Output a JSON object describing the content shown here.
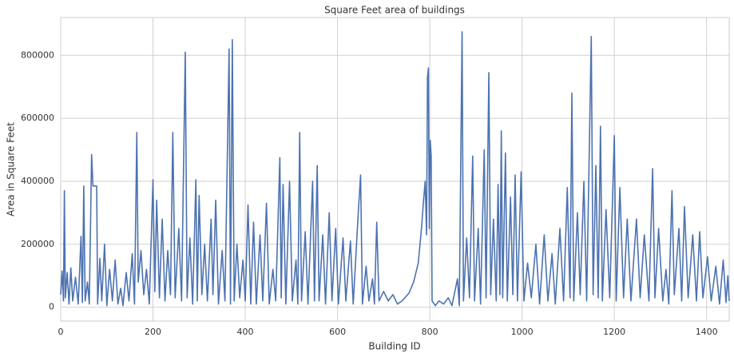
{
  "chart_data": {
    "type": "line",
    "title": "Square Feet area of buildings",
    "xlabel": "Building ID",
    "ylabel": "Area in Square Feet",
    "color": "#4c72b0",
    "grid": true,
    "xlim": [
      0,
      1449
    ],
    "ylim": [
      -44000,
      920000
    ],
    "xticks": [
      0,
      200,
      400,
      600,
      800,
      1000,
      1200,
      1400
    ],
    "yticks": [
      0,
      200000,
      400000,
      600000,
      800000
    ],
    "x": [
      0,
      3,
      6,
      8,
      10,
      14,
      18,
      22,
      26,
      32,
      38,
      44,
      47,
      50,
      53,
      58,
      62,
      67,
      70,
      78,
      80,
      85,
      89,
      95,
      100,
      106,
      112,
      118,
      124,
      130,
      135,
      142,
      148,
      155,
      160,
      165,
      168,
      174,
      180,
      186,
      192,
      200,
      204,
      208,
      214,
      220,
      226,
      232,
      238,
      243,
      248,
      256,
      262,
      270,
      274,
      280,
      286,
      293,
      296,
      300,
      306,
      312,
      318,
      326,
      330,
      336,
      342,
      350,
      356,
      365,
      368,
      372,
      376,
      382,
      388,
      395,
      400,
      406,
      412,
      418,
      424,
      432,
      438,
      446,
      452,
      460,
      466,
      475,
      478,
      482,
      488,
      496,
      502,
      510,
      514,
      518,
      522,
      530,
      536,
      546,
      550,
      556,
      560,
      568,
      574,
      582,
      588,
      596,
      602,
      612,
      618,
      628,
      634,
      645,
      650,
      654,
      662,
      668,
      676,
      680,
      685,
      690,
      700,
      710,
      720,
      730,
      740,
      755,
      765,
      775,
      782,
      786,
      790,
      793,
      795,
      797,
      799,
      801,
      803,
      805,
      812,
      820,
      830,
      840,
      848,
      860,
      864,
      870,
      873,
      880,
      886,
      893,
      897,
      905,
      910,
      918,
      922,
      928,
      932,
      938,
      944,
      948,
      952,
      955,
      958,
      964,
      968,
      975,
      980,
      985,
      990,
      998,
      1004,
      1012,
      1020,
      1030,
      1038,
      1048,
      1056,
      1065,
      1072,
      1082,
      1090,
      1098,
      1104,
      1108,
      1112,
      1120,
      1126,
      1134,
      1140,
      1150,
      1154,
      1160,
      1165,
      1170,
      1174,
      1182,
      1190,
      1200,
      1204,
      1212,
      1220,
      1228,
      1236,
      1248,
      1256,
      1265,
      1275,
      1283,
      1288,
      1296,
      1305,
      1312,
      1318,
      1325,
      1330,
      1340,
      1346,
      1352,
      1360,
      1370,
      1378,
      1385,
      1392,
      1402,
      1410,
      1420,
      1428,
      1436,
      1442,
      1446,
      1449
    ],
    "values": [
      40000,
      115000,
      20000,
      370000,
      30000,
      110000,
      10000,
      125000,
      20000,
      95000,
      10000,
      225000,
      15000,
      385000,
      20000,
      80000,
      10000,
      485000,
      385000,
      385000,
      10000,
      155000,
      20000,
      200000,
      5000,
      120000,
      20000,
      150000,
      10000,
      60000,
      5000,
      110000,
      20000,
      170000,
      10000,
      555000,
      80000,
      180000,
      40000,
      120000,
      10000,
      405000,
      50000,
      340000,
      30000,
      280000,
      20000,
      180000,
      40000,
      555000,
      30000,
      250000,
      20000,
      810000,
      30000,
      220000,
      10000,
      405000,
      20000,
      355000,
      40000,
      200000,
      20000,
      280000,
      40000,
      340000,
      10000,
      180000,
      20000,
      820000,
      10000,
      850000,
      20000,
      200000,
      30000,
      150000,
      20000,
      325000,
      10000,
      270000,
      10000,
      230000,
      20000,
      330000,
      10000,
      120000,
      20000,
      475000,
      30000,
      390000,
      10000,
      400000,
      20000,
      150000,
      10000,
      555000,
      20000,
      240000,
      10000,
      400000,
      20000,
      450000,
      20000,
      230000,
      10000,
      300000,
      20000,
      250000,
      10000,
      220000,
      20000,
      210000,
      10000,
      300000,
      420000,
      10000,
      130000,
      20000,
      90000,
      10000,
      270000,
      20000,
      50000,
      20000,
      40000,
      10000,
      20000,
      45000,
      80000,
      140000,
      250000,
      330000,
      400000,
      230000,
      730000,
      760000,
      250000,
      530000,
      480000,
      20000,
      5000,
      20000,
      10000,
      30000,
      5000,
      90000,
      5000,
      875000,
      20000,
      220000,
      30000,
      480000,
      20000,
      250000,
      10000,
      500000,
      30000,
      745000,
      40000,
      280000,
      20000,
      390000,
      40000,
      560000,
      30000,
      490000,
      20000,
      350000,
      40000,
      420000,
      20000,
      430000,
      20000,
      140000,
      30000,
      200000,
      10000,
      230000,
      20000,
      170000,
      10000,
      250000,
      20000,
      380000,
      30000,
      680000,
      20000,
      300000,
      40000,
      400000,
      20000,
      860000,
      40000,
      450000,
      30000,
      575000,
      20000,
      310000,
      30000,
      545000,
      20000,
      380000,
      30000,
      280000,
      20000,
      280000,
      30000,
      230000,
      20000,
      440000,
      30000,
      250000,
      20000,
      120000,
      10000,
      370000,
      40000,
      250000,
      20000,
      320000,
      30000,
      230000,
      20000,
      240000,
      30000,
      160000,
      20000,
      130000,
      10000,
      150000,
      15000,
      100000,
      20000
    ]
  }
}
